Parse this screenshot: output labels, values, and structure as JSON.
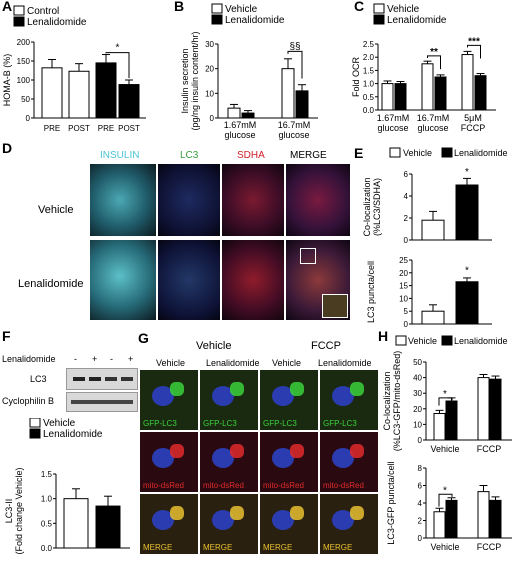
{
  "panels": {
    "A": {
      "letter": "A",
      "legend": [
        "Control",
        "Lenalidomide"
      ],
      "star": "*"
    },
    "B": {
      "letter": "B",
      "legend": [
        "Vehicle",
        "Lenalidomide"
      ],
      "sig": "§§"
    },
    "C": {
      "letter": "C",
      "legend": [
        "Vehicle",
        "Lenalidomide"
      ],
      "sig": [
        "**",
        "***"
      ]
    },
    "D": {
      "letter": "D",
      "cols": [
        "INSULIN",
        "LC3",
        "SDHA",
        "MERGE"
      ],
      "rows": [
        "Vehicle",
        "Lenalidomide"
      ]
    },
    "E": {
      "letter": "E",
      "legend": [
        "Vehicle",
        "Lenalidomide"
      ],
      "star": "*"
    },
    "F": {
      "letter": "F",
      "treatment_label": "Lenalidomide",
      "signs": [
        "-",
        "+",
        "-",
        "+"
      ],
      "blots": [
        "LC3",
        "Cyclophilin B"
      ],
      "legend": [
        "Vehicle",
        "Lenalidomide"
      ]
    },
    "G": {
      "letter": "G",
      "groups": [
        "Vehicle",
        "FCCP"
      ],
      "cols": [
        "Vehicle",
        "Lenalidomide",
        "Vehicle",
        "Lenalidomide"
      ],
      "rows": [
        "GFP-LC3",
        "mito-dsRed",
        "MERGE"
      ]
    },
    "H": {
      "letter": "H",
      "legend": [
        "Vehicle",
        "Lenalidomide"
      ],
      "star": "*"
    }
  },
  "chart_data": [
    {
      "panel": "A",
      "type": "bar",
      "ylabel": "HOMA-B (%)",
      "ylim": [
        0,
        200
      ],
      "yticks": [
        0,
        50,
        100,
        150,
        200
      ],
      "categories": [
        "PRE",
        "POST",
        "PRE",
        "POST"
      ],
      "series": [
        {
          "name": "Control",
          "values": [
            132,
            123,
            null,
            null
          ],
          "errors": [
            22,
            20,
            null,
            null
          ]
        },
        {
          "name": "Lenalidomide",
          "values": [
            null,
            null,
            145,
            88
          ],
          "errors": [
            null,
            null,
            22,
            12
          ]
        }
      ]
    },
    {
      "panel": "B",
      "type": "bar",
      "ylabel": "Insulin secretion (pg/ng insulin content/hr)",
      "ylim": [
        0,
        30
      ],
      "yticks": [
        0,
        10,
        20,
        30
      ],
      "categories": [
        "1.67mM glucose",
        "16.7mM glucose"
      ],
      "series": [
        {
          "name": "Vehicle",
          "values": [
            4,
            20
          ],
          "errors": [
            1.5,
            4
          ]
        },
        {
          "name": "Lenalidomide",
          "values": [
            2,
            11
          ],
          "errors": [
            1,
            2.5
          ]
        }
      ]
    },
    {
      "panel": "C",
      "type": "bar",
      "ylabel": "Fold OCR",
      "ylim": [
        0,
        2.5
      ],
      "yticks": [
        0.0,
        0.5,
        1.0,
        1.5,
        2.0,
        2.5
      ],
      "categories": [
        "1.67mM glucose",
        "16.7mM glucose",
        "5μM FCCP"
      ],
      "series": [
        {
          "name": "Vehicle",
          "values": [
            1.0,
            1.75,
            2.1
          ],
          "errors": [
            0.1,
            0.1,
            0.12
          ]
        },
        {
          "name": "Lenalidomide",
          "values": [
            1.0,
            1.25,
            1.3
          ],
          "errors": [
            0.08,
            0.08,
            0.08
          ]
        }
      ]
    },
    {
      "panel": "E-top",
      "type": "bar",
      "ylabel": "Co-localization (%LC3/SDHA)",
      "ylim": [
        0,
        6
      ],
      "yticks": [
        0,
        2,
        4,
        6
      ],
      "series": [
        {
          "name": "Vehicle",
          "values": [
            1.8
          ],
          "errors": [
            0.8
          ]
        },
        {
          "name": "Lenalidomide",
          "values": [
            5.0
          ],
          "errors": [
            0.6
          ]
        }
      ]
    },
    {
      "panel": "E-bottom",
      "type": "bar",
      "ylabel": "LC3 puncta/cell",
      "ylim": [
        0,
        25
      ],
      "yticks": [
        0,
        5,
        10,
        15,
        20,
        25
      ],
      "series": [
        {
          "name": "Vehicle",
          "values": [
            5
          ],
          "errors": [
            2.5
          ]
        },
        {
          "name": "Lenalidomide",
          "values": [
            16.5
          ],
          "errors": [
            1.5
          ]
        }
      ]
    },
    {
      "panel": "F",
      "type": "bar",
      "ylabel": "LC3-II (Fold change Vehicle)",
      "ylim": [
        0,
        1.5
      ],
      "yticks": [
        0.0,
        0.5,
        1.0,
        1.5
      ],
      "series": [
        {
          "name": "Vehicle",
          "values": [
            1.0
          ],
          "errors": [
            0.2
          ]
        },
        {
          "name": "Lenalidomide",
          "values": [
            0.85
          ],
          "errors": [
            0.2
          ]
        }
      ]
    },
    {
      "panel": "H-top",
      "type": "bar",
      "ylabel": "Co-localization (%LC3-GFP/mito-dsRed)",
      "ylim": [
        0,
        50
      ],
      "yticks": [
        0,
        10,
        20,
        30,
        40,
        50
      ],
      "categories": [
        "Vehicle",
        "FCCP"
      ],
      "series": [
        {
          "name": "Vehicle",
          "values": [
            17,
            40
          ],
          "errors": [
            2,
            2
          ]
        },
        {
          "name": "Lenalidomide",
          "values": [
            25,
            39
          ],
          "errors": [
            2,
            2
          ]
        }
      ]
    },
    {
      "panel": "H-bottom",
      "type": "bar",
      "ylabel": "LC3-GFP puncta/cell",
      "ylim": [
        0,
        8
      ],
      "yticks": [
        0,
        2,
        4,
        6,
        8
      ],
      "categories": [
        "Vehicle",
        "FCCP"
      ],
      "series": [
        {
          "name": "Vehicle",
          "values": [
            3,
            5.3
          ],
          "errors": [
            0.4,
            0.7
          ]
        },
        {
          "name": "Lenalidomide",
          "values": [
            4.3,
            4.3
          ],
          "errors": [
            0.3,
            0.4
          ]
        }
      ]
    }
  ]
}
